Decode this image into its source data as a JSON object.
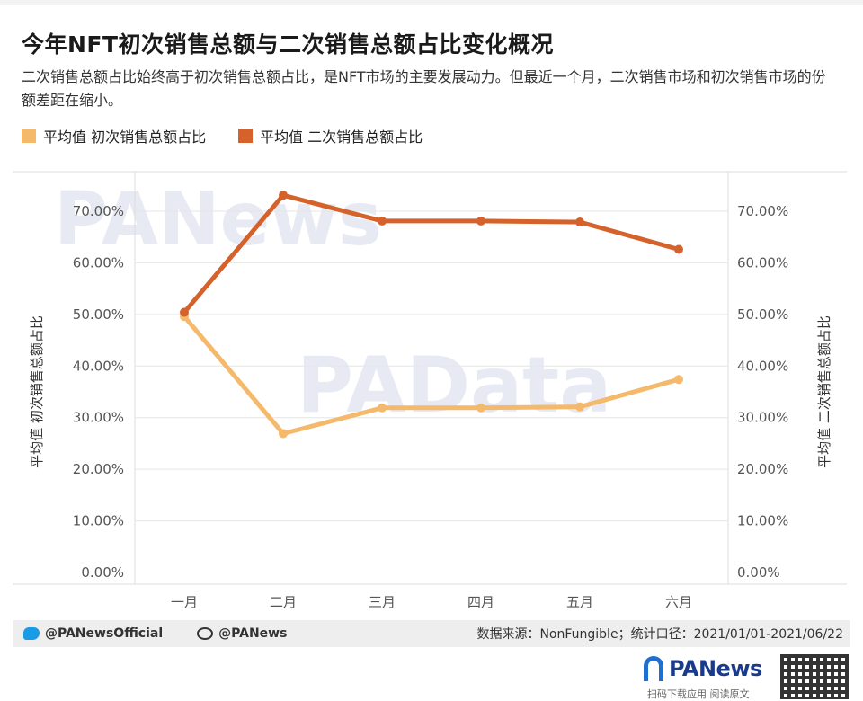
{
  "header": {
    "title": "今年NFT初次销售总额与二次销售总额占比变化概况",
    "subtitle": "二次销售总额占比始终高于初次销售总额占比，是NFT市场的主要发展动力。但最近一个月，二次销售市场和初次销售市场的份额差距在缩小。"
  },
  "legend": {
    "primary": "平均值 初次销售总额占比",
    "secondary": "平均值 二次销售总额占比"
  },
  "colors": {
    "primary": "#f4b96a",
    "secondary": "#d4622a",
    "grid": "#e6e6e6",
    "watermark": "#e7eaf2"
  },
  "watermarks": [
    "PANews",
    "PAData"
  ],
  "chart_data": {
    "type": "line",
    "categories": [
      "一月",
      "二月",
      "三月",
      "四月",
      "五月",
      "六月"
    ],
    "series": [
      {
        "name": "平均值 初次销售总额占比",
        "values": [
          49.6,
          26.9,
          31.9,
          31.9,
          32.1,
          37.4
        ],
        "axis": "left"
      },
      {
        "name": "平均值 二次销售总额占比",
        "values": [
          50.4,
          73.1,
          68.1,
          68.1,
          67.9,
          62.6
        ],
        "axis": "right"
      }
    ],
    "ylabel": "平均值 初次销售总额占比",
    "ylabel_right": "平均值 二次销售总额占比",
    "ylim": [
      0,
      75
    ],
    "y_ticks": [
      "0.00%",
      "10.00%",
      "20.00%",
      "30.00%",
      "40.00%",
      "50.00%",
      "60.00%",
      "70.00%"
    ],
    "y_tick_values": [
      0,
      10,
      20,
      30,
      40,
      50,
      60,
      70
    ],
    "grid": true,
    "legend_position": "top-left"
  },
  "footer": {
    "twitter": "@PANewsOfficial",
    "weibo": "@PANews",
    "source": "数据来源：NonFungible；统计口径：2021/01/01-2021/06/22"
  },
  "brand": {
    "name": "PANews",
    "slogan": "扫码下载应用 阅读原文"
  }
}
